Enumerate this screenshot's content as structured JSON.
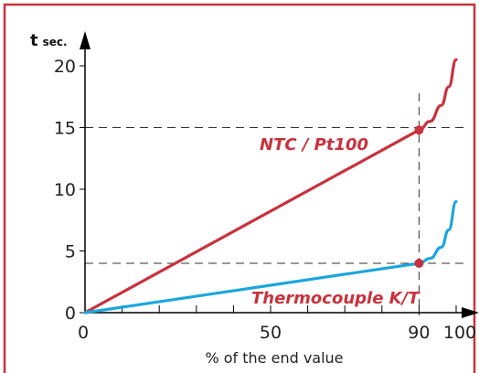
{
  "chart_data": {
    "type": "line",
    "ylabel": "t",
    "ylabel_unit": "sec.",
    "xlabel": "% of the end value",
    "xlim": [
      0,
      100
    ],
    "ylim": [
      0,
      20
    ],
    "x_ticks": [
      0,
      50,
      90,
      100
    ],
    "y_ticks": [
      0,
      5,
      10,
      15,
      20
    ],
    "grid": false,
    "reference_lines": [
      {
        "axis": "y",
        "value": 15
      },
      {
        "axis": "y",
        "value": 4
      },
      {
        "axis": "x",
        "value": 90
      }
    ],
    "series": [
      {
        "name": "NTC / Pt100",
        "color": "#c8323c",
        "x": [
          0,
          90,
          93,
          96,
          98,
          100
        ],
        "y": [
          0,
          14.8,
          15.5,
          16.8,
          18.3,
          20.5
        ]
      },
      {
        "name": "Thermocouple K/T",
        "color": "#1aa6dd",
        "x": [
          0,
          90,
          93,
          96,
          98,
          100
        ],
        "y": [
          0,
          4,
          4.4,
          5.3,
          6.7,
          9
        ]
      }
    ],
    "markers": [
      {
        "x": 90,
        "y": 14.8,
        "color": "#c8323c"
      },
      {
        "x": 90,
        "y": 4,
        "color": "#c8323c"
      }
    ],
    "frame_color": "#c8323c"
  }
}
